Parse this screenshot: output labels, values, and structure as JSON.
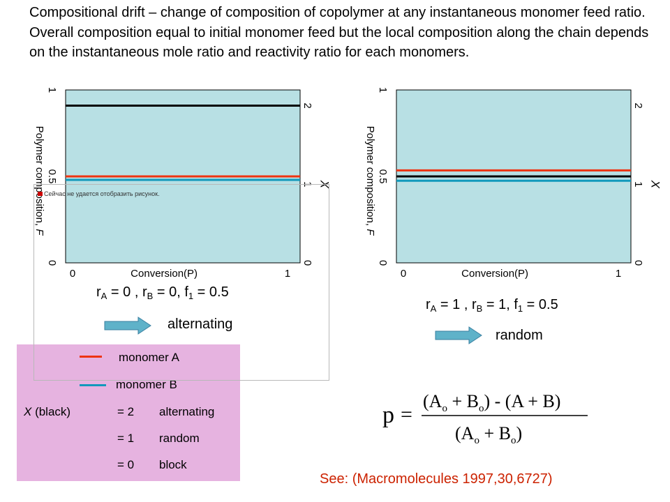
{
  "intro_text": "Compositional drift – change of composition of copolymer at any instantaneous monomer feed ratio. Overall composition equal to initial monomer feed but the local composition along the chain depends on the instantaneous mole ratio and reactivity ratio for each monomers.",
  "chart_data": [
    {
      "type": "line",
      "xlabel": "Conversion(P)",
      "ylabel": "Polymer composition, F",
      "y2label": "X",
      "xlim": [
        0,
        1
      ],
      "ylim": [
        0,
        1
      ],
      "y2lim": [
        0,
        2.2
      ],
      "x_ticks": [
        "0",
        "1"
      ],
      "y_ticks": [
        "0",
        "0.5",
        "1"
      ],
      "y2_ticks": [
        "0",
        "1",
        "2"
      ],
      "plot_bg": "#b8e0e4",
      "series": [
        {
          "name": "monomer A",
          "color": "#ee3311",
          "x": [
            0,
            1
          ],
          "y": [
            0.5,
            0.5
          ]
        },
        {
          "name": "monomer B",
          "color": "#1199bb",
          "x": [
            0,
            1
          ],
          "y": [
            0.48,
            0.48
          ]
        },
        {
          "name": "X (black)",
          "color": "#000000",
          "axis": "right",
          "x": [
            0,
            1
          ],
          "y": [
            2,
            2
          ]
        }
      ]
    },
    {
      "type": "line",
      "xlabel": "Conversion(P)",
      "ylabel": "Polymer composition, F",
      "y2label": "X",
      "xlim": [
        0,
        1
      ],
      "ylim": [
        0,
        1
      ],
      "y2lim": [
        0,
        2.2
      ],
      "x_ticks": [
        "0",
        "1"
      ],
      "y_ticks": [
        "0",
        "0.5",
        "1"
      ],
      "y2_ticks": [
        "0",
        "1",
        "2"
      ],
      "plot_bg": "#b8e0e4",
      "series": [
        {
          "name": "monomer A",
          "color": "#ee3311",
          "x": [
            0,
            1
          ],
          "y": [
            0.535,
            0.535
          ]
        },
        {
          "name": "monomer B",
          "color": "#1199bb",
          "x": [
            0,
            1
          ],
          "y": [
            0.475,
            0.475
          ]
        },
        {
          "name": "X (black)",
          "color": "#000000",
          "axis": "right",
          "x": [
            0,
            1
          ],
          "y": [
            1.1,
            1.1
          ]
        }
      ]
    }
  ],
  "panel_left": {
    "rA": "r",
    "rA_sub": "A",
    "rA_val": " = 0 , ",
    "rB": "r",
    "rB_sub": "B",
    "rB_val": " = 0, ",
    "f1": "f",
    "f1_sub": "1",
    "f1_val": " = 0.5",
    "type_label": "alternating"
  },
  "panel_right": {
    "rA": "r",
    "rA_sub": "A",
    "rA_val": " = 1 , ",
    "rB": "r",
    "rB_sub": "B",
    "rB_val": " = 1, ",
    "f1": "f",
    "f1_sub": "1",
    "f1_val": " = 0.5",
    "type_label": "random"
  },
  "arrow_color": "#5fb2c9",
  "legend": {
    "bg_color": "#e6b3e0",
    "monomer_a": "monomer A",
    "monomer_a_color": "#ee3311",
    "monomer_b": "monomer B",
    "monomer_b_color": "#1199bb",
    "x_label_italic": "X",
    "x_label_rest": " (black)",
    "rows": [
      {
        "value": "= 2",
        "meaning": "alternating"
      },
      {
        "value": "= 1",
        "meaning": "random"
      },
      {
        "value": "= 0",
        "meaning": "block"
      }
    ]
  },
  "placeholder_text": "Сейчас не удается отобразить рисунок.",
  "formula": {
    "lhs": "p",
    "equals": "=",
    "numerator_a": "(A",
    "numerator_a_sub": "o",
    "numerator_b": " + B",
    "numerator_b_sub": "o",
    "numerator_close": ")",
    "numerator_rest": " - (A + B)",
    "denominator_a": "(A",
    "denominator_a_sub": "o",
    "denominator_b": " + B",
    "denominator_b_sub": "o",
    "denominator_close": ")"
  },
  "reference": "See: (Macromolecules 1997,30,6727)",
  "reference_color": "#cc2200"
}
